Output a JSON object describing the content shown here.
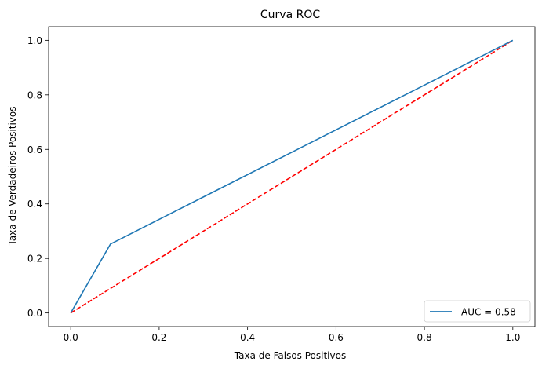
{
  "chart_data": {
    "type": "line",
    "title": "Curva ROC",
    "xlabel": "Taxa de Falsos Positivos",
    "ylabel": "Taxa de Verdadeiros Positivos",
    "xlim": [
      -0.05,
      1.05
    ],
    "ylim": [
      -0.05,
      1.05
    ],
    "xticks": [
      0.0,
      0.2,
      0.4,
      0.6,
      0.8,
      1.0
    ],
    "yticks": [
      0.0,
      0.2,
      0.4,
      0.6,
      0.8,
      1.0
    ],
    "xtick_labels": [
      "0.0",
      "0.2",
      "0.4",
      "0.6",
      "0.8",
      "1.0"
    ],
    "ytick_labels": [
      "0.0",
      "0.2",
      "0.4",
      "0.6",
      "0.8",
      "1.0"
    ],
    "grid": false,
    "legend_position": "lower-right",
    "series": [
      {
        "name": "AUC = 0.58",
        "color": "#1f77b4",
        "style": "solid",
        "x": [
          0.0,
          0.09,
          1.0
        ],
        "y": [
          0.0,
          0.253,
          1.0
        ]
      },
      {
        "color": "#ff0000",
        "style": "dashed",
        "x": [
          0.0,
          1.0
        ],
        "y": [
          0.0,
          1.0
        ]
      }
    ]
  }
}
